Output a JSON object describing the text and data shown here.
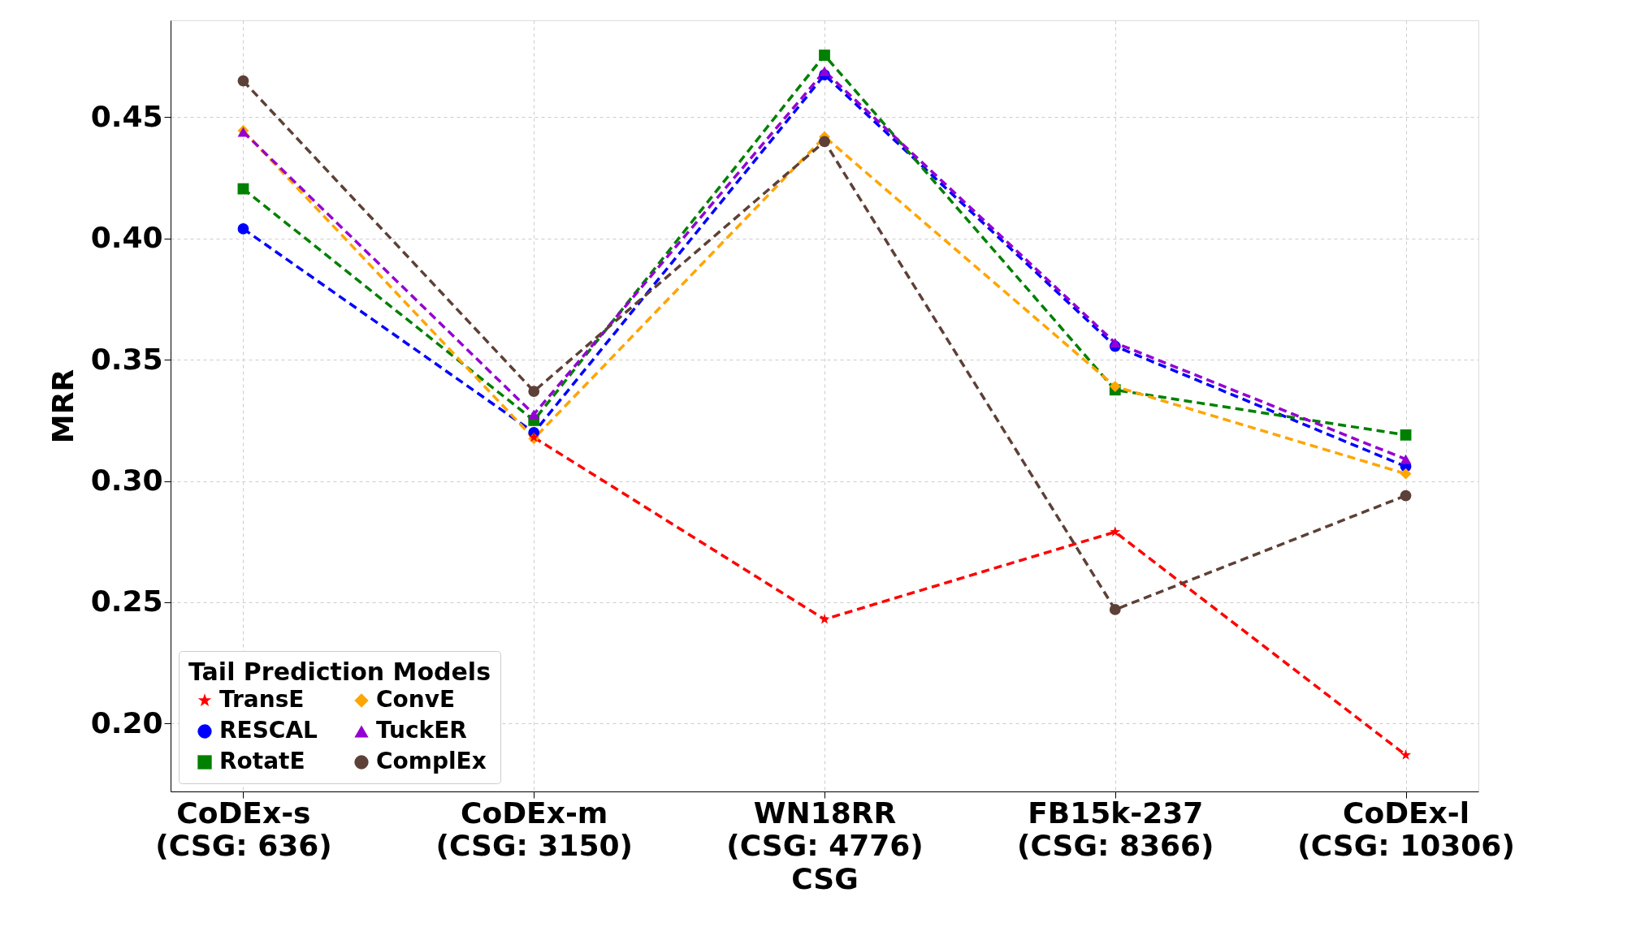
{
  "chart_data": {
    "type": "line",
    "xlabel": "CSG",
    "ylabel": "MRR",
    "legend_title": "Tail Prediction Models",
    "categories": [
      "CoDEx-s\n(CSG: 636)",
      "CoDEx-m\n(CSG: 3150)",
      "WN18RR\n(CSG: 4776)",
      "FB15k-237\n(CSG: 8366)",
      "CoDEx-l\n(CSG: 10306)"
    ],
    "ylim": [
      0.172,
      0.49
    ],
    "yticks": [
      {
        "value": 0.2,
        "label": "0.20"
      },
      0.25,
      {
        "value": 0.3,
        "label": "0.30"
      },
      0.35,
      {
        "value": 0.4,
        "label": "0.40"
      },
      0.45
    ],
    "grid": true,
    "legend": "bottom left",
    "line_style": "dashed",
    "series": [
      {
        "name": "TransE",
        "color": "#ff0000",
        "marker": "star",
        "values": [
          null,
          0.318,
          0.243,
          0.279,
          0.187
        ]
      },
      {
        "name": "RESCAL",
        "color": "#0000ff",
        "marker": "circle",
        "values": [
          0.404,
          0.32,
          0.4675,
          0.3556,
          0.306
        ]
      },
      {
        "name": "RotatE",
        "color": "#008000",
        "marker": "square",
        "values": [
          0.4205,
          0.325,
          0.4756,
          0.3376,
          0.319
        ]
      },
      {
        "name": "ConvE",
        "color": "#ffa500",
        "marker": "diamond",
        "values": [
          0.4445,
          0.3175,
          0.442,
          0.339,
          0.303
        ]
      },
      {
        "name": "TuckER",
        "color": "#9400d3",
        "marker": "triangle",
        "values": [
          0.444,
          0.3275,
          0.469,
          0.357,
          0.309
        ]
      },
      {
        "name": "ComplEx",
        "color": "#5d4037",
        "marker": "circle",
        "values": [
          0.465,
          0.337,
          0.44,
          0.247,
          0.294
        ]
      }
    ]
  }
}
